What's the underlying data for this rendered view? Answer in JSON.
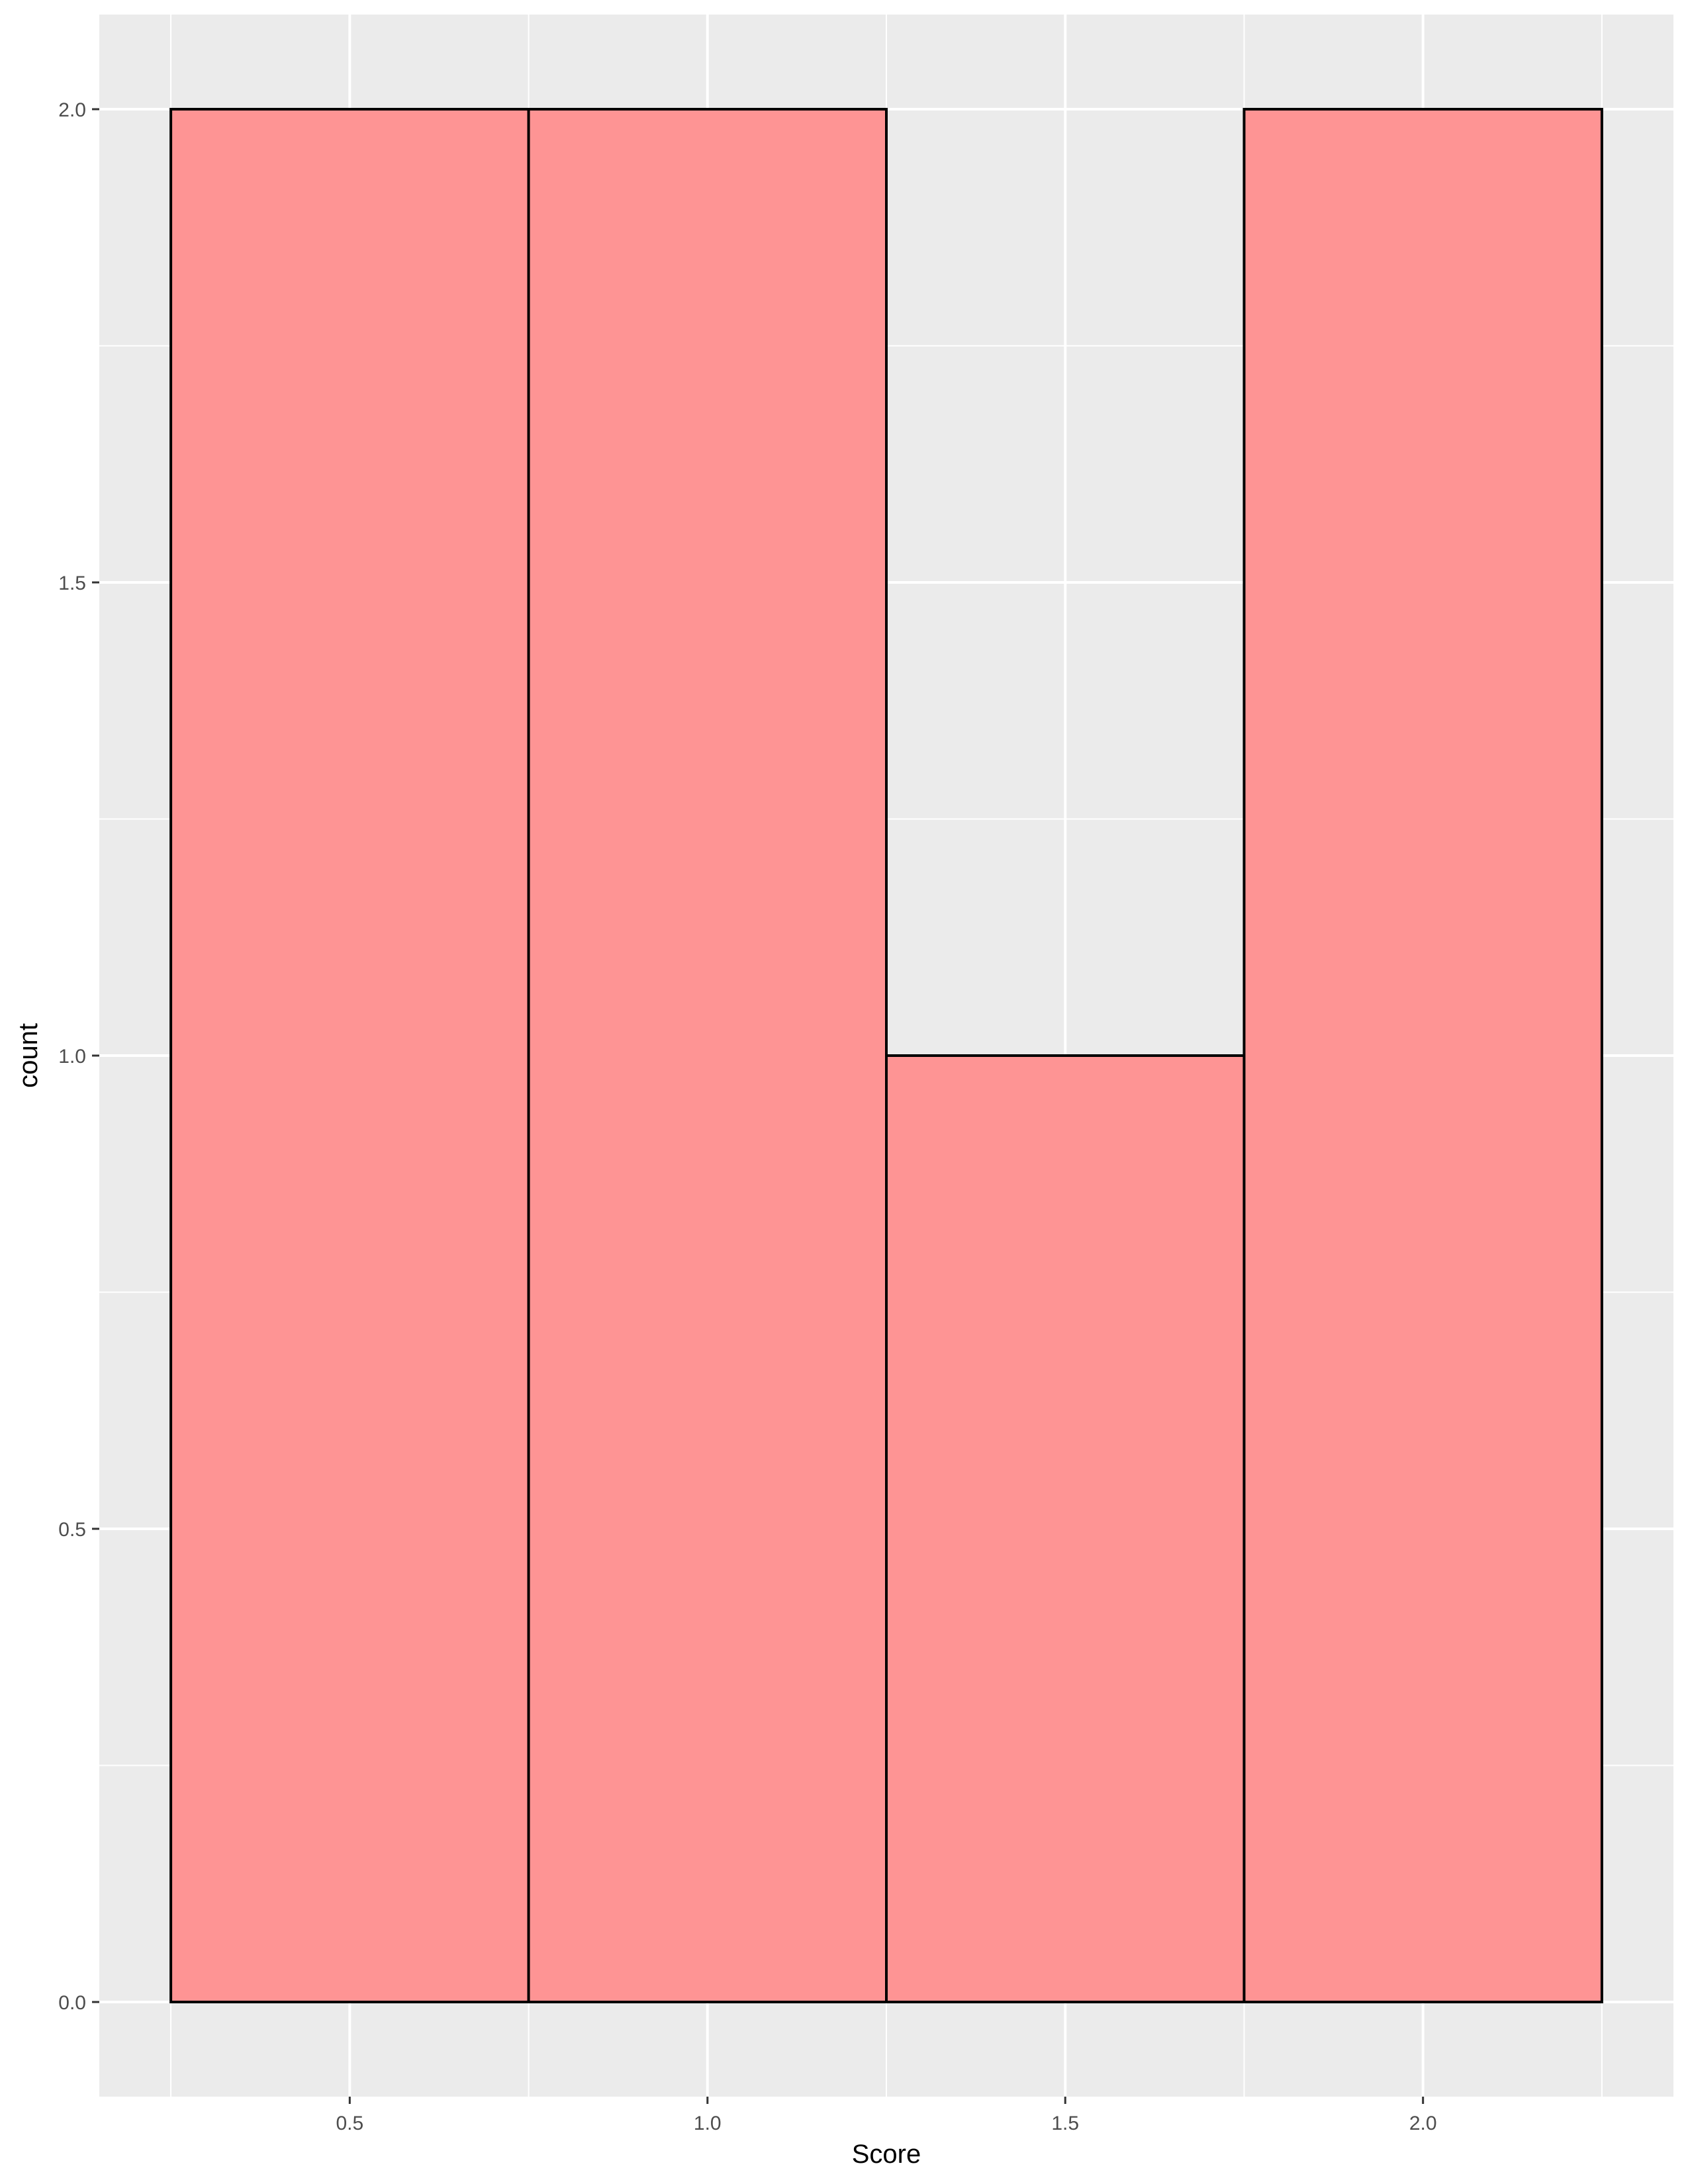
{
  "chart_data": {
    "type": "bar",
    "subtype": "histogram",
    "xlabel": "Score",
    "ylabel": "count",
    "bins": [
      {
        "x_start": 0.25,
        "x_end": 0.75,
        "count": 2
      },
      {
        "x_start": 0.75,
        "x_end": 1.25,
        "count": 2
      },
      {
        "x_start": 1.25,
        "x_end": 1.75,
        "count": 1
      },
      {
        "x_start": 1.75,
        "x_end": 2.25,
        "count": 2
      }
    ],
    "xlim": [
      0.15,
      2.35
    ],
    "ylim": [
      -0.1,
      2.1
    ],
    "x_ticks": [
      {
        "value": 0.5,
        "label": "0.5"
      },
      {
        "value": 1.0,
        "label": "1.0"
      },
      {
        "value": 1.5,
        "label": "1.5"
      },
      {
        "value": 2.0,
        "label": "2.0"
      }
    ],
    "y_ticks": [
      {
        "value": 0.0,
        "label": "0.0"
      },
      {
        "value": 0.5,
        "label": "0.5"
      },
      {
        "value": 1.0,
        "label": "1.0"
      },
      {
        "value": 1.5,
        "label": "1.5"
      },
      {
        "value": 2.0,
        "label": "2.0"
      }
    ],
    "grid": true,
    "legend": "none",
    "colors": {
      "panel_background": "#ebebeb",
      "gridline": "#ffffff",
      "bar_fill": "#fe9494",
      "bar_outline": "#000000",
      "tick_mark": "#333333"
    }
  }
}
